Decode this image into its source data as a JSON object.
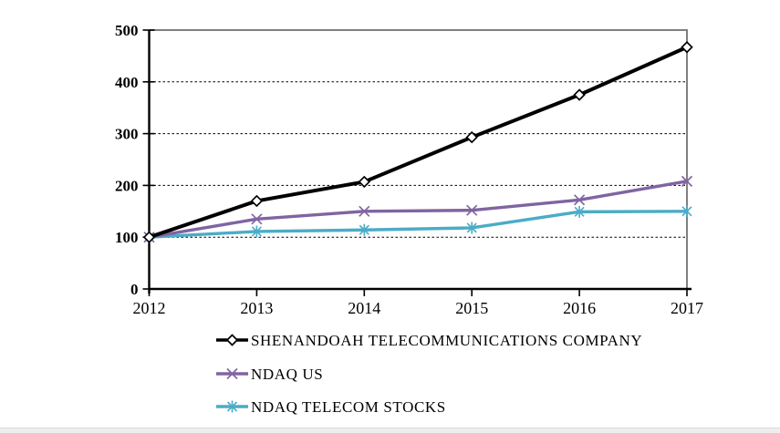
{
  "page": {
    "background": "#ffffff",
    "bottom_strip_color": "#edefef"
  },
  "chart_data": {
    "type": "line",
    "title": "",
    "xlabel": "",
    "ylabel": "",
    "categories": [
      "2012",
      "2013",
      "2014",
      "2015",
      "2016",
      "2017"
    ],
    "y_ticks": [
      0,
      100,
      200,
      300,
      400,
      500
    ],
    "ylim": [
      0,
      500
    ],
    "grid": "horizontal-dashed-black",
    "plot_border_color": "#808080",
    "axis_color": "#000000",
    "legend_position": "bottom-left",
    "series": [
      {
        "name": "SHENANDOAH TELECOMMUNICATIONS COMPANY",
        "color": "#000000",
        "marker": "diamond",
        "values": [
          100,
          170,
          207,
          293,
          375,
          467
        ]
      },
      {
        "name": "NDAQ US",
        "color": "#8064A2",
        "marker": "x",
        "values": [
          100,
          135,
          150,
          152,
          172,
          208
        ]
      },
      {
        "name": "NDAQ TELECOM STOCKS",
        "color": "#4BACC6",
        "marker": "star",
        "values": [
          100,
          111,
          114,
          118,
          149,
          150
        ]
      }
    ]
  }
}
